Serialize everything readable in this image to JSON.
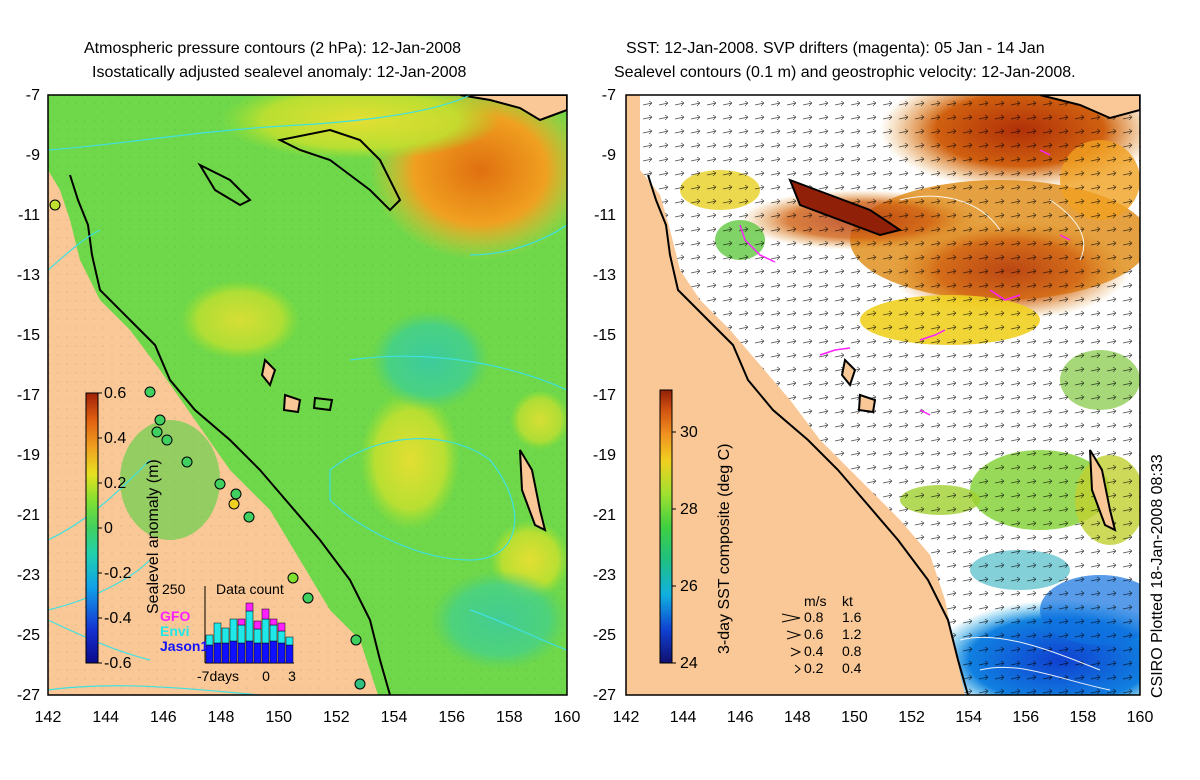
{
  "left_panel": {
    "title_line1": "Atmospheric pressure contours (2 hPa): 12-Jan-2008",
    "title_line2": "Isostatically adjusted sealevel anomaly: 12-Jan-2008",
    "colorbar": {
      "label": "Sealevel anomaly (m)",
      "ticks": [
        "0.6",
        "0.4",
        "0.2",
        "0",
        "-0.2",
        "-0.4",
        "-0.6"
      ],
      "colors": [
        "#0a0a8a",
        "#1530d0",
        "#10a0e8",
        "#20d0b0",
        "#40d060",
        "#80e030",
        "#e8e020",
        "#f0a020",
        "#e06010",
        "#a02008"
      ]
    },
    "inset": {
      "title": "Data count",
      "y_tick": "250",
      "legend": [
        {
          "name": "GFO",
          "color": "#ff20ff"
        },
        {
          "name": "Envi",
          "color": "#20e8e8"
        },
        {
          "name": "Jason1",
          "color": "#1010ff"
        }
      ],
      "x_labels": [
        "-7days",
        "0",
        "3"
      ]
    }
  },
  "right_panel": {
    "title_line1": "SST: 12-Jan-2008. SVP drifters (magenta): 05 Jan - 14 Jan",
    "title_line2": "Sealevel contours (0.1 m) and geostrophic velocity: 12-Jan-2008.",
    "colorbar": {
      "label": "3-day SST composite (deg C)",
      "ticks": [
        "30",
        "28",
        "26",
        "24"
      ],
      "colors": [
        "#101070",
        "#1040d0",
        "#10b0e0",
        "#20c080",
        "#40d040",
        "#a0e030",
        "#f0d020",
        "#f09020",
        "#d05010",
        "#902008"
      ]
    },
    "velocity_legend": {
      "header_ms": "m/s",
      "header_kt": "kt",
      "rows": [
        {
          "ms": "0.8",
          "kt": "1.6"
        },
        {
          "ms": "0.6",
          "kt": "1.2"
        },
        {
          "ms": "0.4",
          "kt": "0.8"
        },
        {
          "ms": "0.2",
          "kt": "0.4"
        }
      ]
    }
  },
  "y_ticks": [
    "-7",
    "-9",
    "-11",
    "-13",
    "-15",
    "-17",
    "-19",
    "-21",
    "-23",
    "-25",
    "-27"
  ],
  "x_ticks": [
    "142",
    "144",
    "146",
    "148",
    "150",
    "152",
    "154",
    "156",
    "158",
    "160"
  ],
  "credit": "CSIRO Plotted 18-Jan-2008 08:33",
  "colors": {
    "land": "#f9c896",
    "sea_green": "#6fd84a",
    "contour_cyan": "#40e0e0",
    "drifter": "#ff20ff"
  }
}
